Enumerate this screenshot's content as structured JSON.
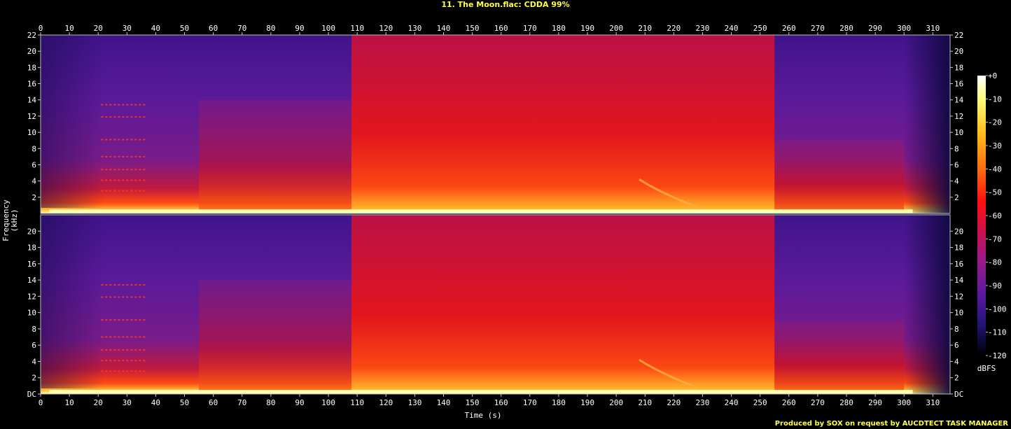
{
  "title": "11. The Moon.flac: CDDA 99%",
  "footer": "Produced by SOX on request by AUCDTECT TASK MANAGER",
  "colors": {
    "title": "#ffff4a",
    "background": "#000000",
    "frame": "#bbbbbb"
  },
  "chart_data": {
    "type": "heatmap",
    "channels": 2,
    "xlabel": "Time (s)",
    "ylabel": "Frequency (kHz)",
    "xlim": [
      0,
      316
    ],
    "ylim": [
      0,
      22
    ],
    "x_ticks": [
      "0",
      "10",
      "20",
      "30",
      "40",
      "50",
      "60",
      "70",
      "80",
      "90",
      "100",
      "110",
      "120",
      "130",
      "140",
      "150",
      "160",
      "170",
      "180",
      "190",
      "200",
      "210",
      "220",
      "230",
      "240",
      "250",
      "260",
      "270",
      "280",
      "290",
      "300",
      "310"
    ],
    "y_ticks_top": [
      "2",
      "4",
      "6",
      "8",
      "10",
      "12",
      "14",
      "16",
      "18",
      "20",
      "22"
    ],
    "y_ticks_bottom": [
      "DC",
      "2",
      "4",
      "6",
      "8",
      "10",
      "12",
      "14",
      "16",
      "18",
      "20"
    ],
    "colorbar": {
      "label": "dBFS",
      "ticks": [
        "+0",
        "-10",
        "-20",
        "-30",
        "-40",
        "-50",
        "-60",
        "-70",
        "-80",
        "-90",
        "-100",
        "-110",
        "-120"
      ],
      "range": [
        -120,
        0
      ]
    },
    "features": {
      "intro_tones_khz": [
        2.8,
        4.1,
        5.4,
        7.0,
        9.1,
        11.9,
        13.4
      ],
      "loud_section_s": [
        108,
        255
      ],
      "sweep_s": [
        208,
        228
      ],
      "fade_out_s": [
        300,
        312
      ]
    }
  }
}
